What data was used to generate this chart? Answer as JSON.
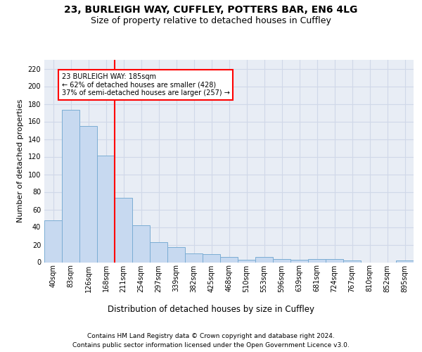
{
  "title1": "23, BURLEIGH WAY, CUFFLEY, POTTERS BAR, EN6 4LG",
  "title2": "Size of property relative to detached houses in Cuffley",
  "xlabel": "Distribution of detached houses by size in Cuffley",
  "ylabel": "Number of detached properties",
  "footnote1": "Contains HM Land Registry data © Crown copyright and database right 2024.",
  "footnote2": "Contains public sector information licensed under the Open Government Licence v3.0.",
  "bar_labels": [
    "40sqm",
    "83sqm",
    "126sqm",
    "168sqm",
    "211sqm",
    "254sqm",
    "297sqm",
    "339sqm",
    "382sqm",
    "425sqm",
    "468sqm",
    "510sqm",
    "553sqm",
    "596sqm",
    "639sqm",
    "681sqm",
    "724sqm",
    "767sqm",
    "810sqm",
    "852sqm",
    "895sqm"
  ],
  "bar_values": [
    48,
    173,
    155,
    121,
    73,
    42,
    23,
    17,
    10,
    9,
    6,
    3,
    6,
    4,
    3,
    4,
    4,
    2,
    0,
    0,
    2
  ],
  "bar_color": "#c7d9f0",
  "bar_edge_color": "#7badd4",
  "grid_color": "#d0d8e8",
  "background_color": "#e8edf5",
  "vline_x": 3.5,
  "vline_color": "red",
  "annotation_text": "23 BURLEIGH WAY: 185sqm\n← 62% of detached houses are smaller (428)\n37% of semi-detached houses are larger (257) →",
  "ylim": [
    0,
    230
  ],
  "yticks": [
    0,
    20,
    40,
    60,
    80,
    100,
    120,
    140,
    160,
    180,
    200,
    220
  ],
  "title1_fontsize": 10,
  "title2_fontsize": 9,
  "xlabel_fontsize": 8.5,
  "ylabel_fontsize": 8,
  "tick_fontsize": 7,
  "footnote_fontsize": 6.5
}
